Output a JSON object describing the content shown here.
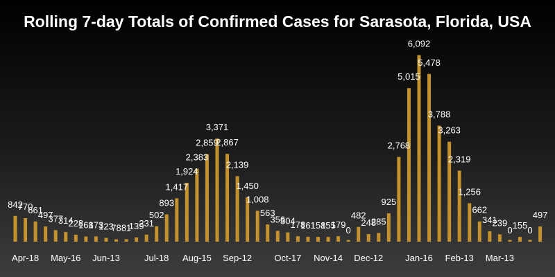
{
  "chart_data": {
    "type": "bar",
    "title": "Rolling 7-day Totals of Confirmed Cases for Sarasota, Florida, USA",
    "xlabel": "",
    "ylabel": "",
    "ylim": [
      0,
      6400
    ],
    "grid": false,
    "bar_color": "#c3922e",
    "background_top": "#000000",
    "background_bottom": "#3d3d3d",
    "text_color": "#ffffff",
    "x_tick_labels": [
      {
        "label": "Apr-18",
        "index": 1
      },
      {
        "label": "May-16",
        "index": 5
      },
      {
        "label": "Jun-13",
        "index": 9
      },
      {
        "label": "Jul-18",
        "index": 14
      },
      {
        "label": "Aug-15",
        "index": 18
      },
      {
        "label": "Sep-12",
        "index": 22
      },
      {
        "label": "Oct-17",
        "index": 27
      },
      {
        "label": "Nov-14",
        "index": 31
      },
      {
        "label": "Dec-12",
        "index": 35
      },
      {
        "label": "Jan-16",
        "index": 40
      },
      {
        "label": "Feb-13",
        "index": 44
      },
      {
        "label": "Mar-13",
        "index": 48
      }
    ],
    "values": [
      842,
      770,
      661,
      497,
      377,
      314,
      228,
      168,
      173,
      123,
      78,
      81,
      139,
      231,
      502,
      893,
      1417,
      1924,
      2383,
      2859,
      3371,
      2867,
      2139,
      1450,
      1008,
      563,
      356,
      304,
      178,
      161,
      158,
      155,
      179,
      0,
      482,
      248,
      285,
      925,
      2768,
      5015,
      6092,
      5478,
      3788,
      3263,
      2319,
      1256,
      662,
      341,
      239,
      0,
      155,
      0,
      497
    ],
    "data_labels": [
      "842",
      "770",
      "661",
      "497",
      "377",
      "314",
      "228",
      "168",
      "173",
      "123",
      "78",
      "81",
      "139",
      "231",
      "502",
      "893",
      "1,417",
      "1,924",
      "2,383",
      "2,859",
      "3,371",
      "2,867",
      "2,139",
      "1,450",
      "1,008",
      "563",
      "356",
      "304",
      "178",
      "161",
      "158",
      "155",
      "179",
      "0",
      "482",
      "248",
      "285",
      "925",
      "2,768",
      "5,015",
      "6,092",
      "5,478",
      "3,788",
      "3,263",
      "2,319",
      "1,256",
      "662",
      "341",
      "239",
      "0",
      "155",
      "0",
      "497"
    ]
  }
}
